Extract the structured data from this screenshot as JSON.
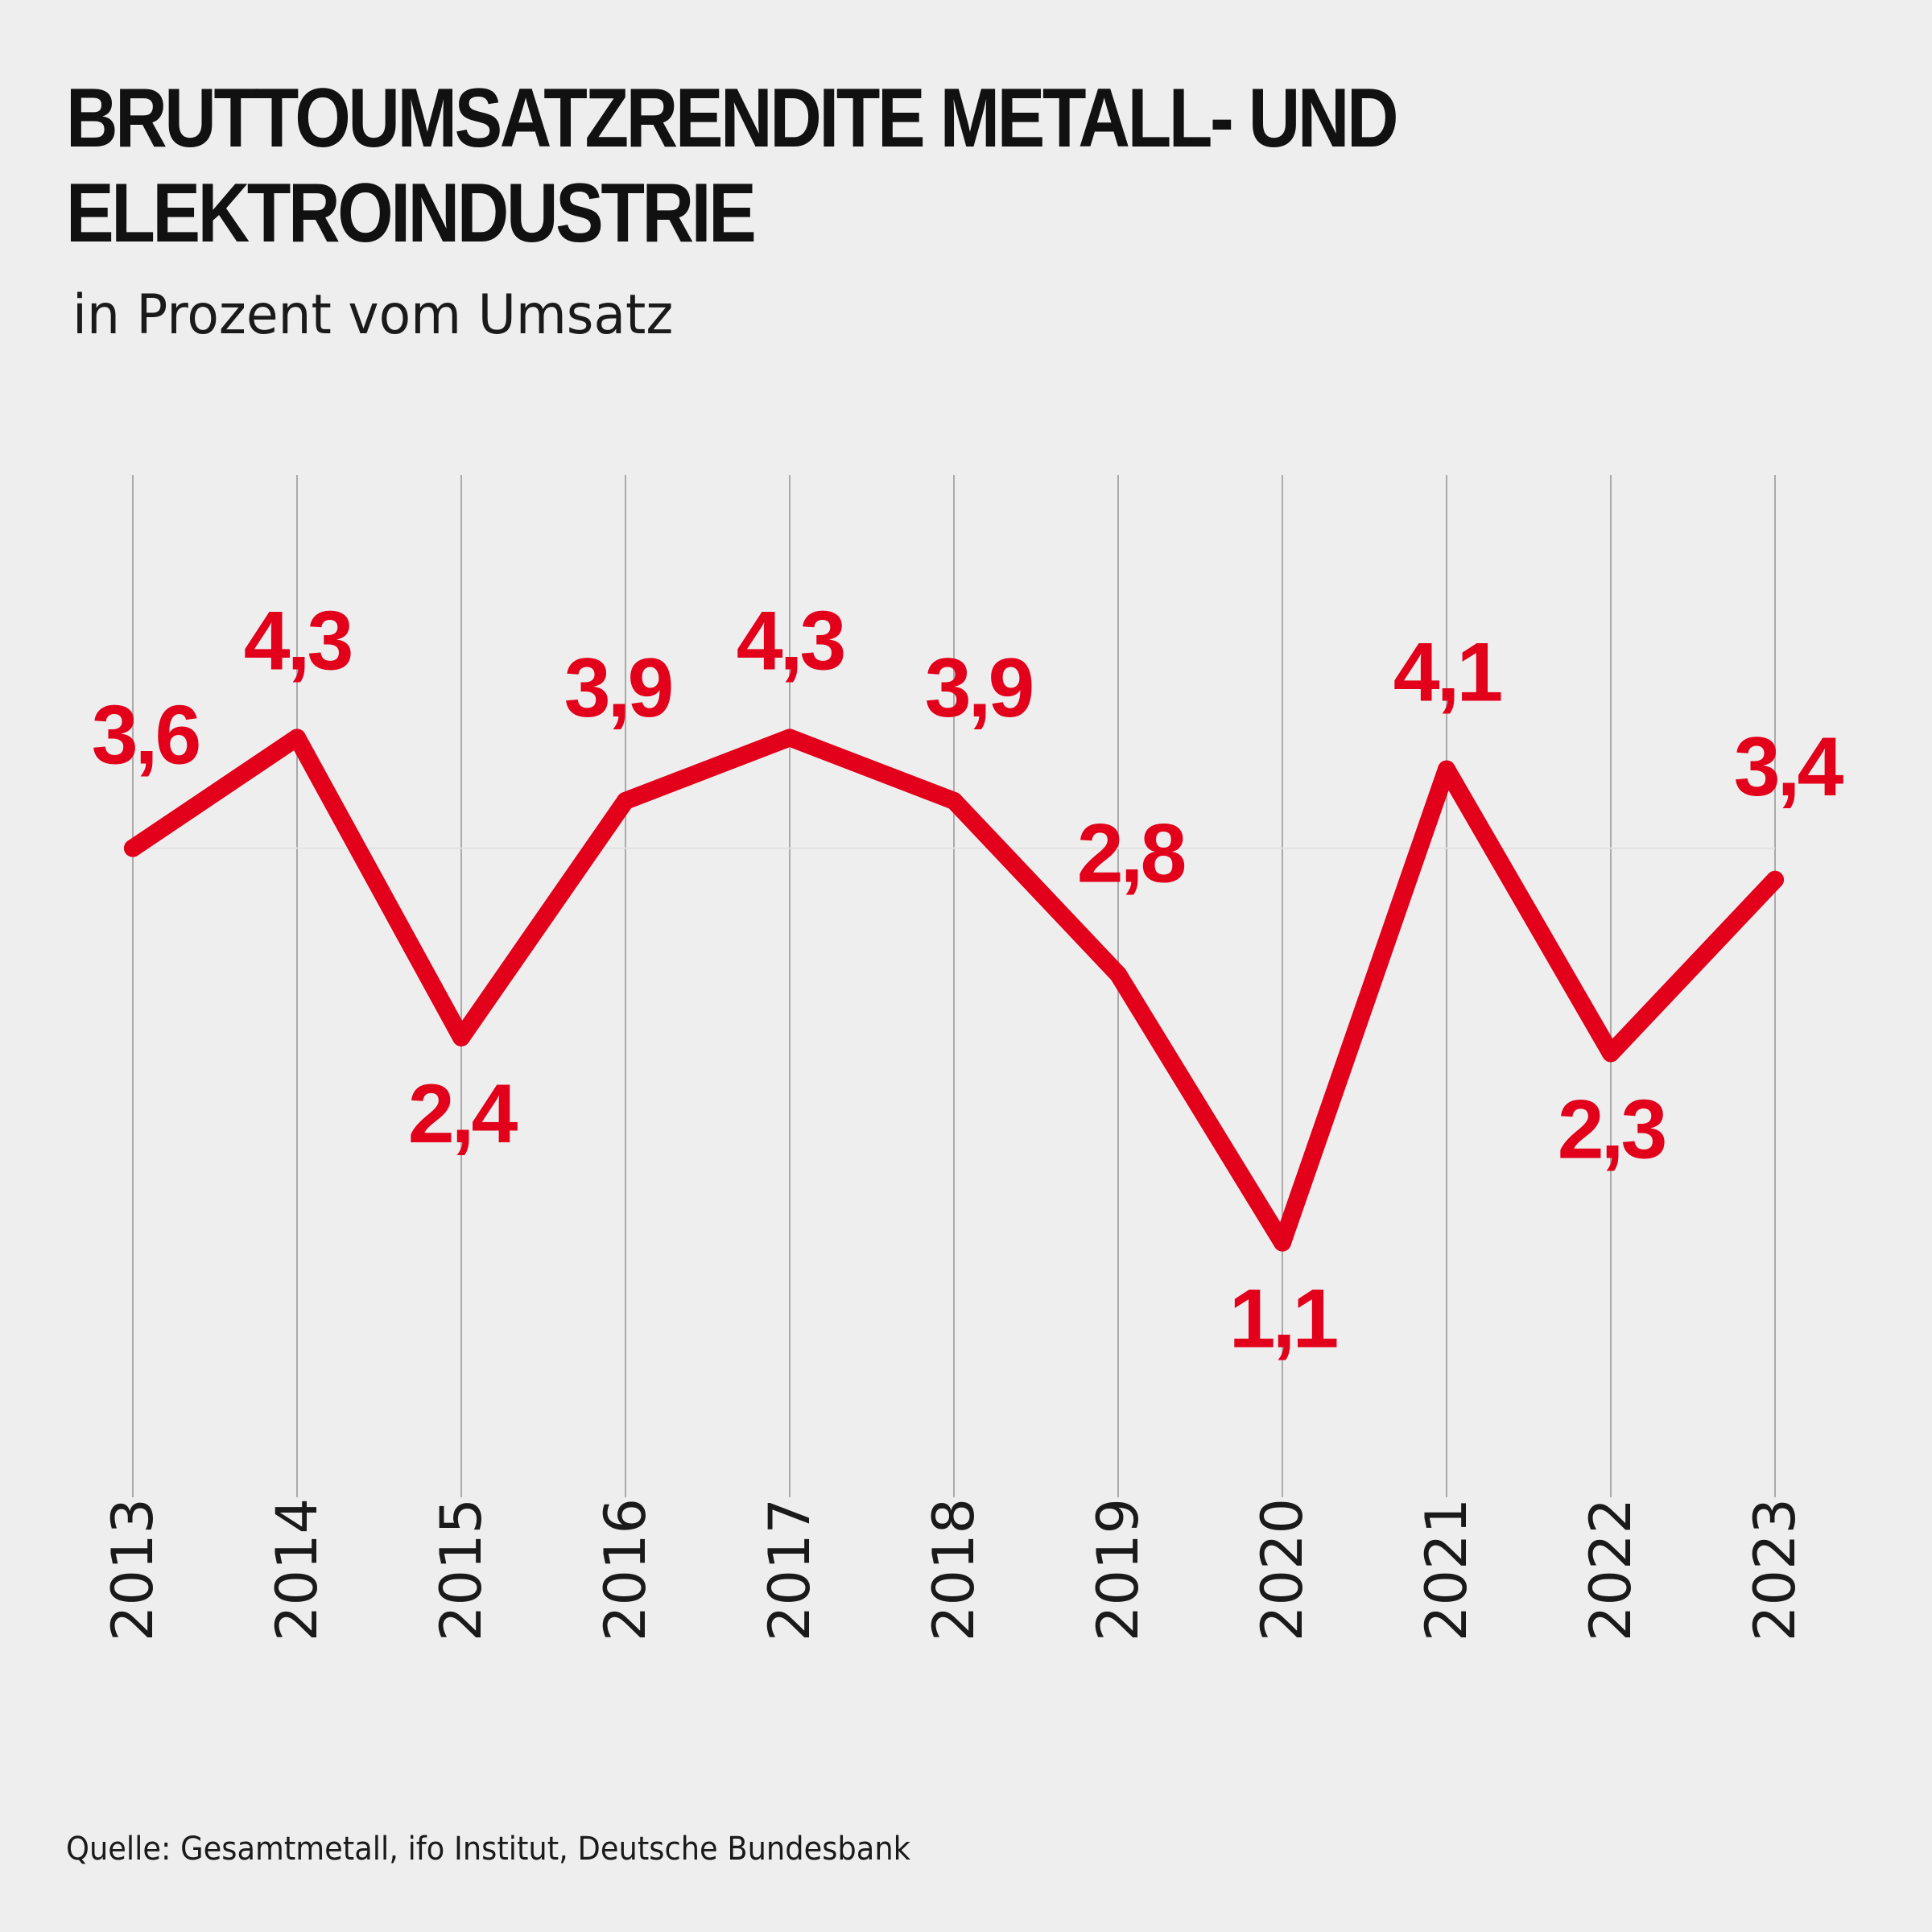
{
  "header": {
    "title": "BRUTTOUMSATZRENDITE METALL- UND ELEKTROINDUSTRIE",
    "subtitle": "in Prozent vom Umsatz"
  },
  "footer": {
    "source": "Quelle: Gesamtmetall, ifo Institut, Deutsche Bundesbank"
  },
  "colors": {
    "background": "#eeeeee",
    "line": "#e2001a",
    "grid": "#aaaaaa",
    "text": "#111111"
  },
  "chart_data": {
    "type": "line",
    "title": "BRUTTOUMSATZRENDITE METALL- UND ELEKTROINDUSTRIE",
    "subtitle": "in Prozent vom Umsatz",
    "x": [
      "2013",
      "2014",
      "2015",
      "2016",
      "2017",
      "2018",
      "2019",
      "2020",
      "2021",
      "2022",
      "2023"
    ],
    "series": [
      {
        "values": [
          3.6,
          4.3,
          2.4,
          3.9,
          4.3,
          3.9,
          2.8,
          1.1,
          4.1,
          2.3,
          3.4
        ],
        "labels": [
          "3,6",
          "4,3",
          "2,4",
          "3,9",
          "4,3",
          "3,9",
          "2,8",
          "1,1",
          "4,1",
          "2,3",
          "3,4"
        ]
      }
    ],
    "ylim": [
      0.2,
      5.2
    ],
    "grid": "vertical",
    "legend": "none",
    "xlabel": "",
    "ylabel": ""
  }
}
